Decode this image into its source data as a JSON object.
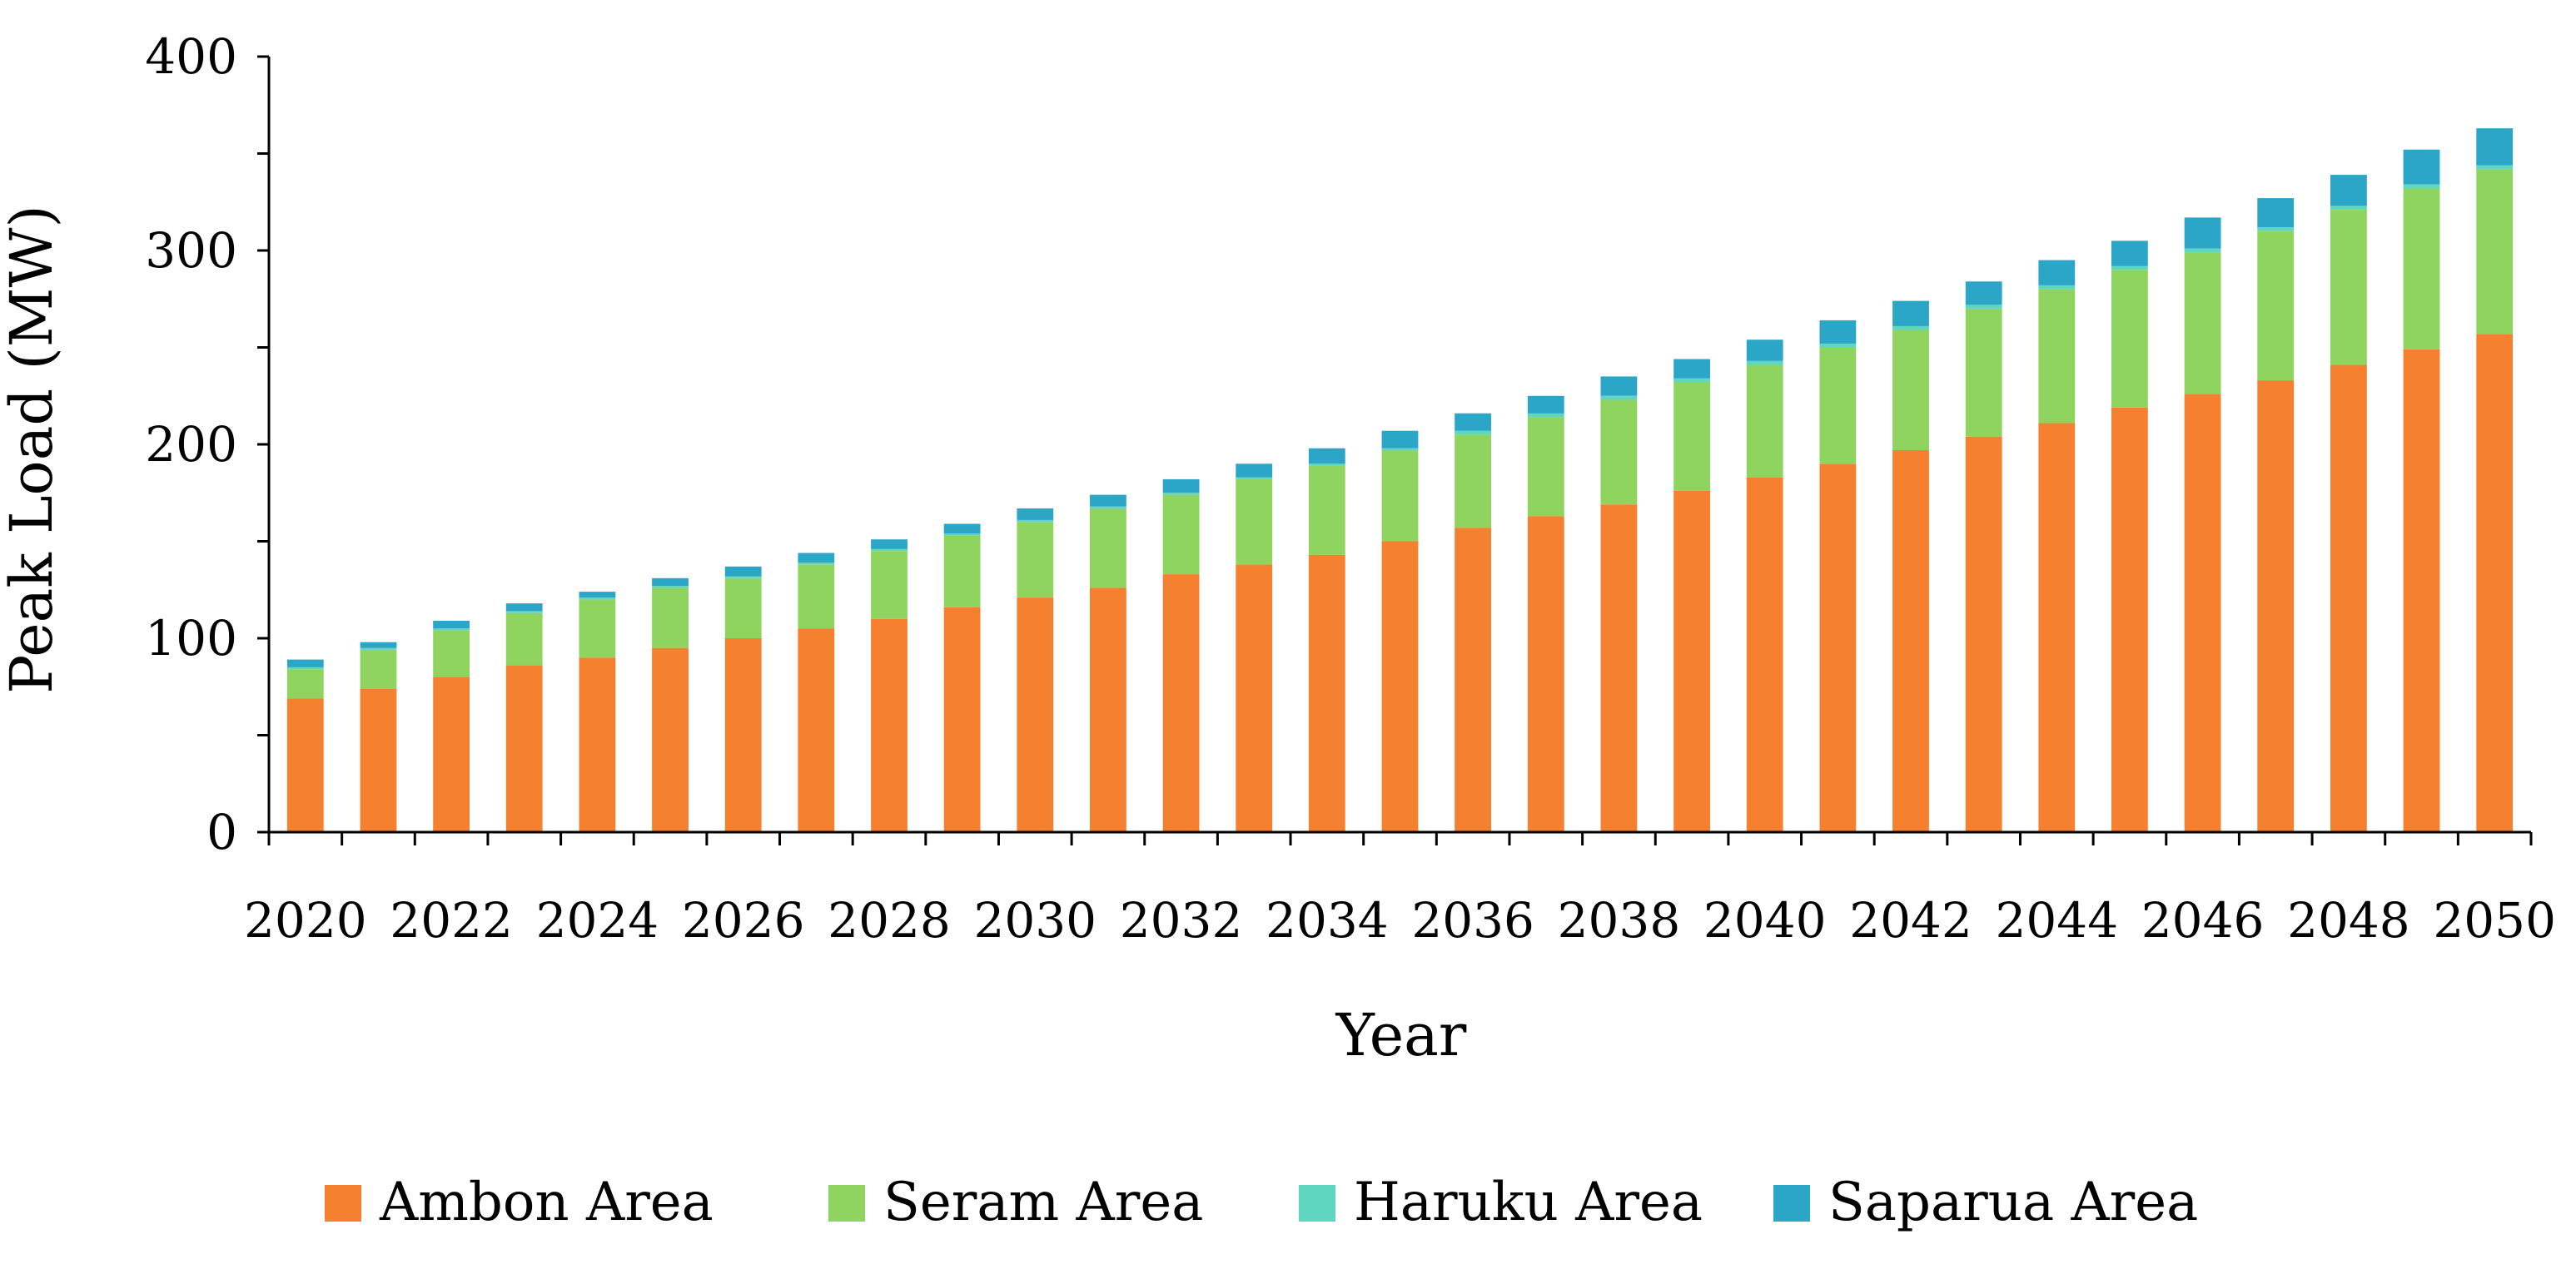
{
  "chart_data": {
    "type": "bar",
    "stacked": true,
    "title": "",
    "xlabel": "Year",
    "ylabel": "Peak Load (MW)",
    "ylim": [
      0,
      400
    ],
    "yticks": [
      0,
      100,
      200,
      300,
      400
    ],
    "x_tick_labels": [
      "2020",
      "2022",
      "2024",
      "2026",
      "2028",
      "2030",
      "2032",
      "2034",
      "2036",
      "2038",
      "2040",
      "2042",
      "2044",
      "2046",
      "2048",
      "2050"
    ],
    "categories": [
      "2020",
      "2021",
      "2022",
      "2023",
      "2024",
      "2025",
      "2026",
      "2027",
      "2028",
      "2029",
      "2030",
      "2031",
      "2032",
      "2033",
      "2034",
      "2035",
      "2036",
      "2037",
      "2038",
      "2039",
      "2040",
      "2041",
      "2042",
      "2043",
      "2044",
      "2045",
      "2046",
      "2047",
      "2048",
      "2049",
      "2050"
    ],
    "series": [
      {
        "name": "Ambon Area",
        "color": "#F58030",
        "values": [
          69,
          74,
          80,
          86,
          90,
          95,
          100,
          105,
          110,
          116,
          121,
          126,
          133,
          138,
          143,
          150,
          157,
          163,
          169,
          176,
          183,
          190,
          197,
          204,
          211,
          219,
          226,
          233,
          241,
          249,
          257
        ]
      },
      {
        "name": "Seram Area",
        "color": "#8ED45E",
        "values": [
          15,
          20,
          24,
          27,
          30,
          31,
          31,
          33,
          35,
          37,
          39,
          41,
          41,
          44,
          46,
          47,
          48,
          51,
          54,
          56,
          58,
          60,
          62,
          66,
          69,
          71,
          73,
          77,
          80,
          83,
          85
        ]
      },
      {
        "name": "Haruku Area",
        "color": "#5FD6C0",
        "values": [
          1,
          1,
          1,
          1,
          1,
          1,
          1,
          1,
          1,
          1,
          1,
          1,
          1,
          1,
          1,
          1,
          2,
          2,
          2,
          2,
          2,
          2,
          2,
          2,
          2,
          2,
          2,
          2,
          2,
          2,
          2
        ]
      },
      {
        "name": "Saparua Area",
        "color": "#2BA6C6",
        "values": [
          4,
          3,
          4,
          4,
          3,
          4,
          5,
          5,
          5,
          5,
          6,
          6,
          7,
          7,
          8,
          9,
          9,
          9,
          10,
          10,
          11,
          12,
          13,
          12,
          13,
          13,
          16,
          15,
          16,
          18,
          19
        ]
      }
    ],
    "legend_position": "bottom",
    "grid": false
  }
}
